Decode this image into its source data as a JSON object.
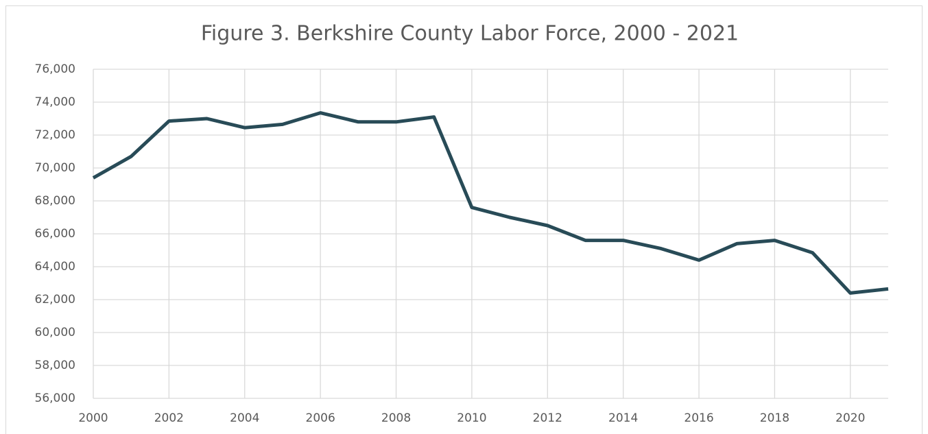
{
  "chart_data": {
    "type": "line",
    "title": "Figure 3. Berkshire County Labor Force, 2000 - 2021",
    "x": [
      2000,
      2001,
      2002,
      2003,
      2004,
      2005,
      2006,
      2007,
      2008,
      2009,
      2010,
      2011,
      2012,
      2013,
      2014,
      2015,
      2016,
      2017,
      2018,
      2019,
      2020,
      2021
    ],
    "series": [
      {
        "name": "Labor Force",
        "color": "#284b57",
        "values": [
          69400,
          70700,
          72850,
          73000,
          72450,
          72650,
          73350,
          72800,
          72800,
          73100,
          67600,
          67000,
          66500,
          65600,
          65600,
          65100,
          64400,
          65400,
          65600,
          64850,
          62400,
          62650
        ]
      }
    ],
    "xlim": [
      2000,
      2021
    ],
    "xticks": [
      2000,
      2002,
      2004,
      2006,
      2008,
      2010,
      2012,
      2014,
      2016,
      2018,
      2020
    ],
    "ylim": [
      56000,
      76000
    ],
    "yticks": [
      {
        "value": 56000,
        "label": "56,000"
      },
      {
        "value": 58000,
        "label": "58,000"
      },
      {
        "value": 60000,
        "label": "60,000"
      },
      {
        "value": 62000,
        "label": "62,000"
      },
      {
        "value": 64000,
        "label": "64,000"
      },
      {
        "value": 66000,
        "label": "66,000"
      },
      {
        "value": 68000,
        "label": "68,000"
      },
      {
        "value": 70000,
        "label": "70,000"
      },
      {
        "value": 72000,
        "label": "72,000"
      },
      {
        "value": 74000,
        "label": "74,000"
      },
      {
        "value": 76000,
        "label": "76,000"
      }
    ],
    "grid": true
  }
}
